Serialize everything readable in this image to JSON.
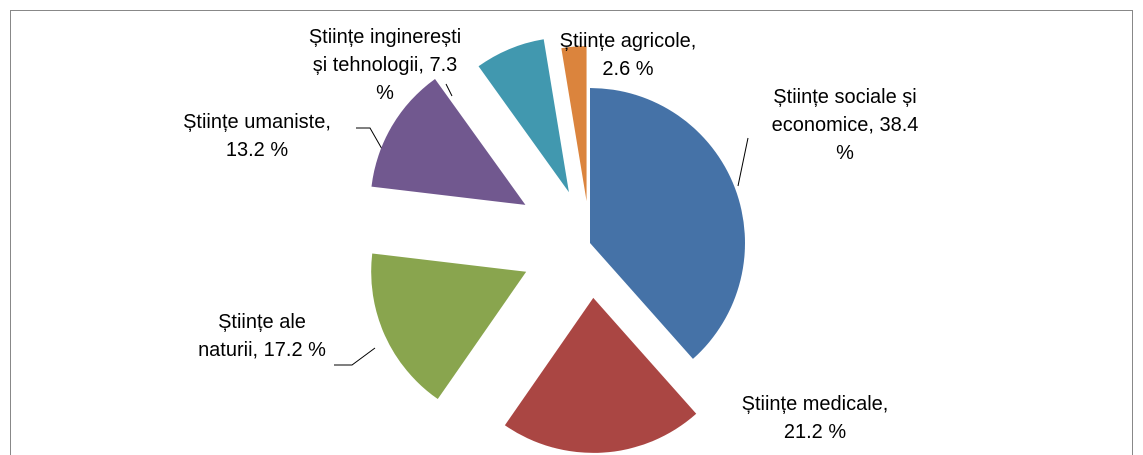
{
  "chart_data": {
    "type": "pie",
    "values": [
      38.4,
      21.2,
      17.2,
      13.2,
      7.3,
      2.6
    ],
    "value_labels": [
      "Științe sociale și economice, 38.4 %",
      "Științe medicale, 21.2 %",
      "Științe ale naturii, 17.2 %",
      "Științe umaniste, 13.2 %",
      "Științe inginerești și tehnologii, 7.3 %",
      "Științe agricole, 2.6 %"
    ],
    "colors": [
      "#4572a7",
      "#aa4643",
      "#89a54e",
      "#71588f",
      "#4198af",
      "#db843d"
    ]
  }
}
